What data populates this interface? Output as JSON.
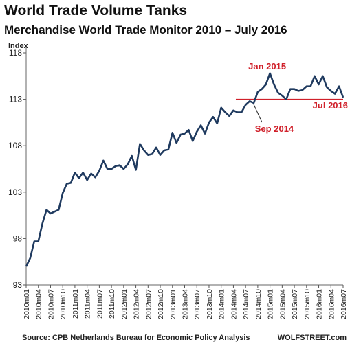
{
  "chart_data": {
    "type": "line",
    "title": "World Trade Volume Tanks",
    "subtitle": "Merchandise World Trade Monitor 2010 – July 2016",
    "ylabel": "Index",
    "ylim": [
      93,
      118
    ],
    "yticks": [
      93,
      98,
      103,
      108,
      113,
      118
    ],
    "grid": false,
    "x_tick_labels": [
      "2010m01",
      "2010m04",
      "2010m07",
      "2010m10",
      "2011m01",
      "2011m04",
      "2011m07",
      "2011m10",
      "2012m01",
      "2012m04",
      "2012m07",
      "2012m10",
      "2013m01",
      "2013m04",
      "2013m07",
      "2013m10",
      "2014m01",
      "2014m04",
      "2014m07",
      "2014m10",
      "2015m01",
      "2015m04",
      "2015m07",
      "2015m10",
      "2016m01",
      "2016m04",
      "2016m07"
    ],
    "series": [
      {
        "color": "#1f3a5f",
        "x": [
          "2010m01",
          "2010m02",
          "2010m03",
          "2010m04",
          "2010m05",
          "2010m06",
          "2010m07",
          "2010m08",
          "2010m09",
          "2010m10",
          "2010m11",
          "2010m12",
          "2011m01",
          "2011m02",
          "2011m03",
          "2011m04",
          "2011m05",
          "2011m06",
          "2011m07",
          "2011m08",
          "2011m09",
          "2011m10",
          "2011m11",
          "2011m12",
          "2012m01",
          "2012m02",
          "2012m03",
          "2012m04",
          "2012m05",
          "2012m06",
          "2012m07",
          "2012m08",
          "2012m09",
          "2012m10",
          "2012m11",
          "2012m12",
          "2013m01",
          "2013m02",
          "2013m03",
          "2013m04",
          "2013m05",
          "2013m06",
          "2013m07",
          "2013m08",
          "2013m09",
          "2013m10",
          "2013m11",
          "2013m12",
          "2014m01",
          "2014m02",
          "2014m03",
          "2014m04",
          "2014m05",
          "2014m06",
          "2014m07",
          "2014m08",
          "2014m09",
          "2014m10",
          "2014m11",
          "2014m12",
          "2015m01",
          "2015m02",
          "2015m03",
          "2015m04",
          "2015m05",
          "2015m06",
          "2015m07",
          "2015m08",
          "2015m09",
          "2015m10",
          "2015m11",
          "2015m12",
          "2016m01",
          "2016m02",
          "2016m03",
          "2016m04",
          "2016m05",
          "2016m06",
          "2016m07"
        ],
        "values": [
          95.0,
          95.9,
          97.7,
          97.7,
          99.6,
          101.1,
          100.7,
          100.9,
          101.1,
          102.9,
          103.9,
          104.0,
          105.1,
          104.5,
          105.1,
          104.3,
          105.0,
          104.6,
          105.3,
          106.4,
          105.5,
          105.5,
          105.8,
          105.9,
          105.5,
          106.0,
          106.9,
          105.4,
          108.2,
          107.5,
          107.0,
          107.1,
          107.8,
          107.0,
          107.5,
          107.6,
          109.4,
          108.3,
          109.2,
          109.3,
          109.7,
          108.5,
          109.5,
          110.2,
          109.3,
          110.5,
          111.1,
          110.4,
          112.1,
          111.6,
          111.2,
          111.8,
          111.6,
          111.6,
          112.4,
          112.8,
          112.6,
          113.8,
          114.1,
          114.6,
          115.8,
          114.6,
          113.7,
          113.4,
          113.0,
          114.1,
          114.1,
          113.9,
          114.0,
          114.4,
          114.4,
          115.5,
          114.6,
          115.5,
          114.3,
          113.9,
          113.6,
          114.4,
          113.2
        ]
      }
    ],
    "reference_line": {
      "value": 113.0,
      "color": "#d0202a"
    },
    "annotations": [
      {
        "text": "Jan 2015",
        "x": "2015m01",
        "value": 115.8
      },
      {
        "text": "Sep 2014",
        "x": "2014m09",
        "value": 112.6
      },
      {
        "text": "Jul 2016",
        "x": "2016m07",
        "value": 113.2
      }
    ],
    "source": "Source: CPB Netherlands Bureau for Economic Policy Analysis",
    "brand": "WOLFSTREET.com"
  }
}
